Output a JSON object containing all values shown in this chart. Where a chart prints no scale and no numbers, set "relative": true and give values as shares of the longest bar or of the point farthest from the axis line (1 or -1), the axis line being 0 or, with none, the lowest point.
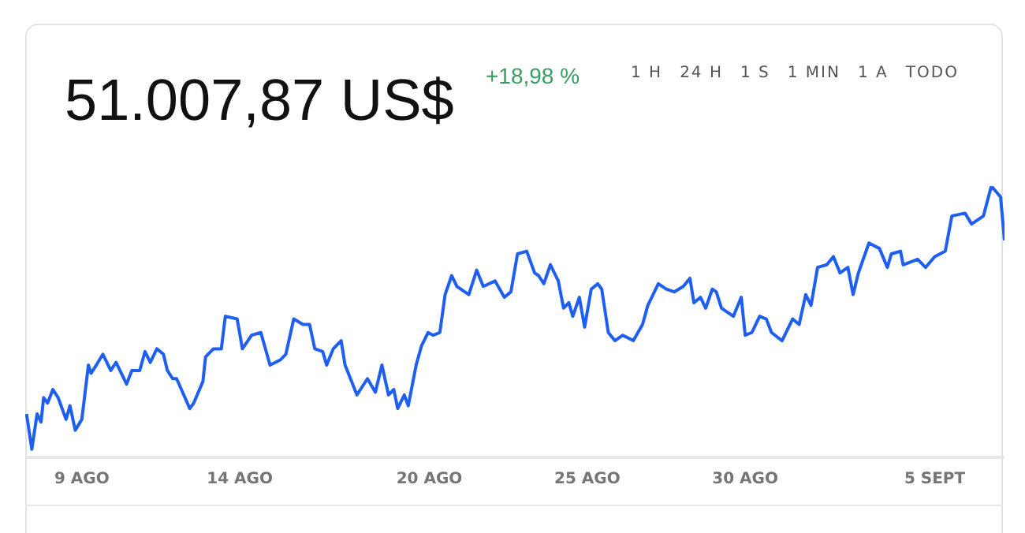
{
  "chart_data": {
    "type": "line",
    "title": "51.007,87 US$",
    "subtitle": "+18,98 %",
    "annotations": [
      "1 H",
      "24 H",
      "1 S",
      "1 MIN",
      "1 A",
      "TODO"
    ],
    "relative": true,
    "legend": false,
    "marker": "none",
    "line_style": "solid",
    "xlim": [
      "--08-07T05:00",
      "--09-07T05:00"
    ],
    "xticks": [
      {
        "value": "--08-09",
        "label": "9 AGO"
      },
      {
        "value": "--08-14",
        "label": "14 AGO"
      },
      {
        "value": "--08-20",
        "label": "20 AGO"
      },
      {
        "value": "--08-25",
        "label": "25 AGO"
      },
      {
        "value": "--08-30",
        "label": "30 AGO"
      },
      {
        "value": "--09-05",
        "label": "5 SEPT"
      }
    ],
    "series": [
      {
        "color": "#1f5ff0",
        "x": [
          "--08-07T06:00",
          "--08-07T10:00",
          "--08-07T14:00",
          "--08-07T17:00",
          "--08-07T19:00",
          "--08-07T22:00",
          "--08-08T02:00",
          "--08-08T06:00",
          "--08-08T12:00",
          "--08-08T15:00",
          "--08-08T19:00",
          "--08-09T00:00",
          "--08-09T05:00",
          "--08-09T07:00",
          "--08-09T11:00",
          "--08-09T16:00",
          "--08-09T22:00",
          "--08-10T02:00",
          "--08-10T10:00",
          "--08-10T14:00",
          "--08-10T20:00",
          "--08-11T00:00",
          "--08-11T04:00",
          "--08-11T09:00",
          "--08-11T14:00",
          "--08-11T17:00",
          "--08-11T21:00",
          "--08-12T00:00",
          "--08-12T10:00",
          "--08-12T13:00",
          "--08-12T20:00",
          "--08-12T22:00",
          "--08-13T04:00",
          "--08-13T10:00",
          "--08-13T13:00",
          "--08-13T22:00",
          "--08-14T02:00",
          "--08-14T09:00",
          "--08-14T16:00",
          "--08-14T23:00",
          "--08-15T07:00",
          "--08-15T11:00",
          "--08-15T17:00",
          "--08-16T00:00",
          "--08-16T05:00",
          "--08-16T09:00",
          "--08-16T15:00",
          "--08-16T18:00",
          "--08-16T23:00",
          "--08-17T05:00",
          "--08-17T08:00",
          "--08-17T17:00",
          "--08-18T01:00",
          "--08-18T07:00",
          "--08-18T12:00",
          "--08-18T17:00",
          "--08-18T21:00",
          "--08-19T00:00",
          "--08-19T05:00",
          "--08-19T08:00",
          "--08-19T14:00",
          "--08-19T18:00",
          "--08-19T23:00",
          "--08-20T03:00",
          "--08-20T08:00",
          "--08-20T12:00",
          "--08-20T17:00",
          "--08-20T21:00",
          "--08-21T06:00",
          "--08-21T12:00",
          "--08-21T17:00",
          "--08-22T02:00",
          "--08-22T09:00",
          "--08-22T14:00",
          "--08-22T19:00",
          "--08-23T02:00",
          "--08-23T08:00",
          "--08-23T11:00",
          "--08-23T15:00",
          "--08-23T20:00",
          "--08-24T02:00",
          "--08-24T06:00",
          "--08-24T10:00",
          "--08-24T13:00",
          "--08-24T18:00",
          "--08-24T22:00",
          "--08-25T03:00",
          "--08-25T08:00",
          "--08-25T11:00",
          "--08-25T16:00",
          "--08-25T21:00",
          "--08-26T03:00",
          "--08-26T11:00",
          "--08-26T18:00",
          "--08-26T22:00",
          "--08-27T06:00",
          "--08-27T12:00",
          "--08-27T18:00",
          "--08-28T01:00",
          "--08-28T06:00",
          "--08-28T09:00",
          "--08-28T14:00",
          "--08-28T18:00",
          "--08-28T23:00",
          "--08-29T02:00",
          "--08-29T06:00",
          "--08-29T15:00",
          "--08-29T21:00",
          "--08-30T00:00",
          "--08-30T05:00",
          "--08-30T11:00",
          "--08-30T16:00",
          "--08-30T20:00",
          "--08-31T04:00",
          "--08-31T12:00",
          "--08-31T17:00",
          "--08-31T22:00",
          "--09-01T02:00",
          "--09-01T07:00",
          "--09-01T14:00",
          "--09-01T19:00",
          "--09-02T00:00",
          "--09-02T06:00",
          "--09-02T10:00",
          "--09-02T14:00",
          "--09-02T22:00",
          "--09-03T06:00",
          "--09-03T12:00",
          "--09-03T15:00",
          "--09-03T22:00",
          "--09-04T00:00",
          "--09-04T11:00",
          "--09-04T17:00",
          "--09-05T00:00",
          "--09-05T08:00",
          "--09-05T13:00",
          "--09-05T23:00",
          "--09-06T04:00",
          "--09-06T13:00",
          "--09-06T19:00",
          "--09-07T02:00",
          "--09-07T05:00"
        ],
        "values": [
          0.16,
          0.03,
          0.16,
          0.13,
          0.22,
          0.2,
          0.25,
          0.22,
          0.14,
          0.19,
          0.1,
          0.14,
          0.34,
          0.31,
          0.34,
          0.38,
          0.32,
          0.35,
          0.27,
          0.32,
          0.32,
          0.39,
          0.35,
          0.4,
          0.38,
          0.32,
          0.29,
          0.29,
          0.18,
          0.2,
          0.28,
          0.37,
          0.4,
          0.4,
          0.52,
          0.51,
          0.4,
          0.45,
          0.46,
          0.34,
          0.36,
          0.38,
          0.51,
          0.49,
          0.49,
          0.4,
          0.39,
          0.34,
          0.4,
          0.43,
          0.34,
          0.23,
          0.29,
          0.24,
          0.34,
          0.23,
          0.25,
          0.18,
          0.23,
          0.19,
          0.34,
          0.41,
          0.46,
          0.45,
          0.46,
          0.6,
          0.67,
          0.63,
          0.6,
          0.69,
          0.63,
          0.65,
          0.59,
          0.61,
          0.75,
          0.76,
          0.68,
          0.67,
          0.64,
          0.71,
          0.65,
          0.55,
          0.57,
          0.52,
          0.59,
          0.48,
          0.62,
          0.64,
          0.62,
          0.46,
          0.43,
          0.45,
          0.43,
          0.49,
          0.56,
          0.64,
          0.62,
          0.61,
          0.63,
          0.66,
          0.57,
          0.59,
          0.55,
          0.62,
          0.61,
          0.55,
          0.52,
          0.59,
          0.45,
          0.46,
          0.52,
          0.51,
          0.46,
          0.43,
          0.51,
          0.49,
          0.6,
          0.56,
          0.7,
          0.71,
          0.74,
          0.68,
          0.7,
          0.6,
          0.68,
          0.79,
          0.77,
          0.7,
          0.75,
          0.76,
          0.71,
          0.73,
          0.7,
          0.74,
          0.76,
          0.89,
          0.9,
          0.86,
          0.89,
          1,
          0.96,
          0.8
        ]
      }
    ]
  }
}
